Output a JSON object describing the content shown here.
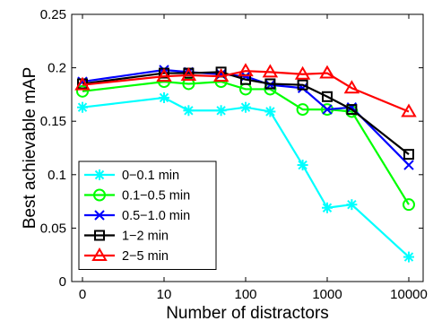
{
  "chart_data": {
    "type": "line",
    "xlabel": "Number of distractors",
    "ylabel": "Best achievable mAP",
    "x_scale": "log (with 0 shown at far left)",
    "x": [
      0,
      10,
      20,
      50,
      100,
      200,
      500,
      1000,
      2000,
      10000
    ],
    "x_ticks": [
      {
        "value": 0,
        "label": "0"
      },
      {
        "value": 10,
        "label": "10"
      },
      {
        "value": 100,
        "label": "100"
      },
      {
        "value": 1000,
        "label": "1000"
      },
      {
        "value": 10000,
        "label": "10000"
      }
    ],
    "ylim": [
      0,
      0.25
    ],
    "y_ticks": [
      {
        "value": 0,
        "label": "0"
      },
      {
        "value": 0.05,
        "label": "0.05"
      },
      {
        "value": 0.1,
        "label": "0.1"
      },
      {
        "value": 0.15,
        "label": "0.15"
      },
      {
        "value": 0.2,
        "label": "0.2"
      },
      {
        "value": 0.25,
        "label": "0.25"
      }
    ],
    "grid": false,
    "legend_position": "bottom-left",
    "series": [
      {
        "name": "0−0.1 min",
        "color": "#00ffff",
        "marker": "asterisk",
        "values": [
          0.163,
          0.172,
          0.16,
          0.16,
          0.163,
          0.159,
          0.109,
          0.069,
          0.072,
          0.023
        ]
      },
      {
        "name": "0.1−0.5 min",
        "color": "#00ff00",
        "marker": "circle",
        "values": [
          0.178,
          0.187,
          0.185,
          0.187,
          0.18,
          0.18,
          0.161,
          0.161,
          0.159,
          0.072
        ]
      },
      {
        "name": "0.5−1.0 min",
        "color": "#0000ff",
        "marker": "x",
        "values": [
          0.187,
          0.198,
          0.196,
          0.194,
          0.192,
          0.184,
          0.181,
          0.161,
          0.163,
          0.109
        ]
      },
      {
        "name": "1−2 min",
        "color": "#000000",
        "marker": "square",
        "values": [
          0.185,
          0.195,
          0.195,
          0.196,
          0.189,
          0.185,
          0.184,
          0.173,
          0.161,
          0.119
        ]
      },
      {
        "name": "2−5 min",
        "color": "#ff0000",
        "marker": "triangle",
        "values": [
          0.184,
          0.192,
          0.193,
          0.192,
          0.197,
          0.196,
          0.194,
          0.195,
          0.181,
          0.159
        ]
      }
    ]
  }
}
